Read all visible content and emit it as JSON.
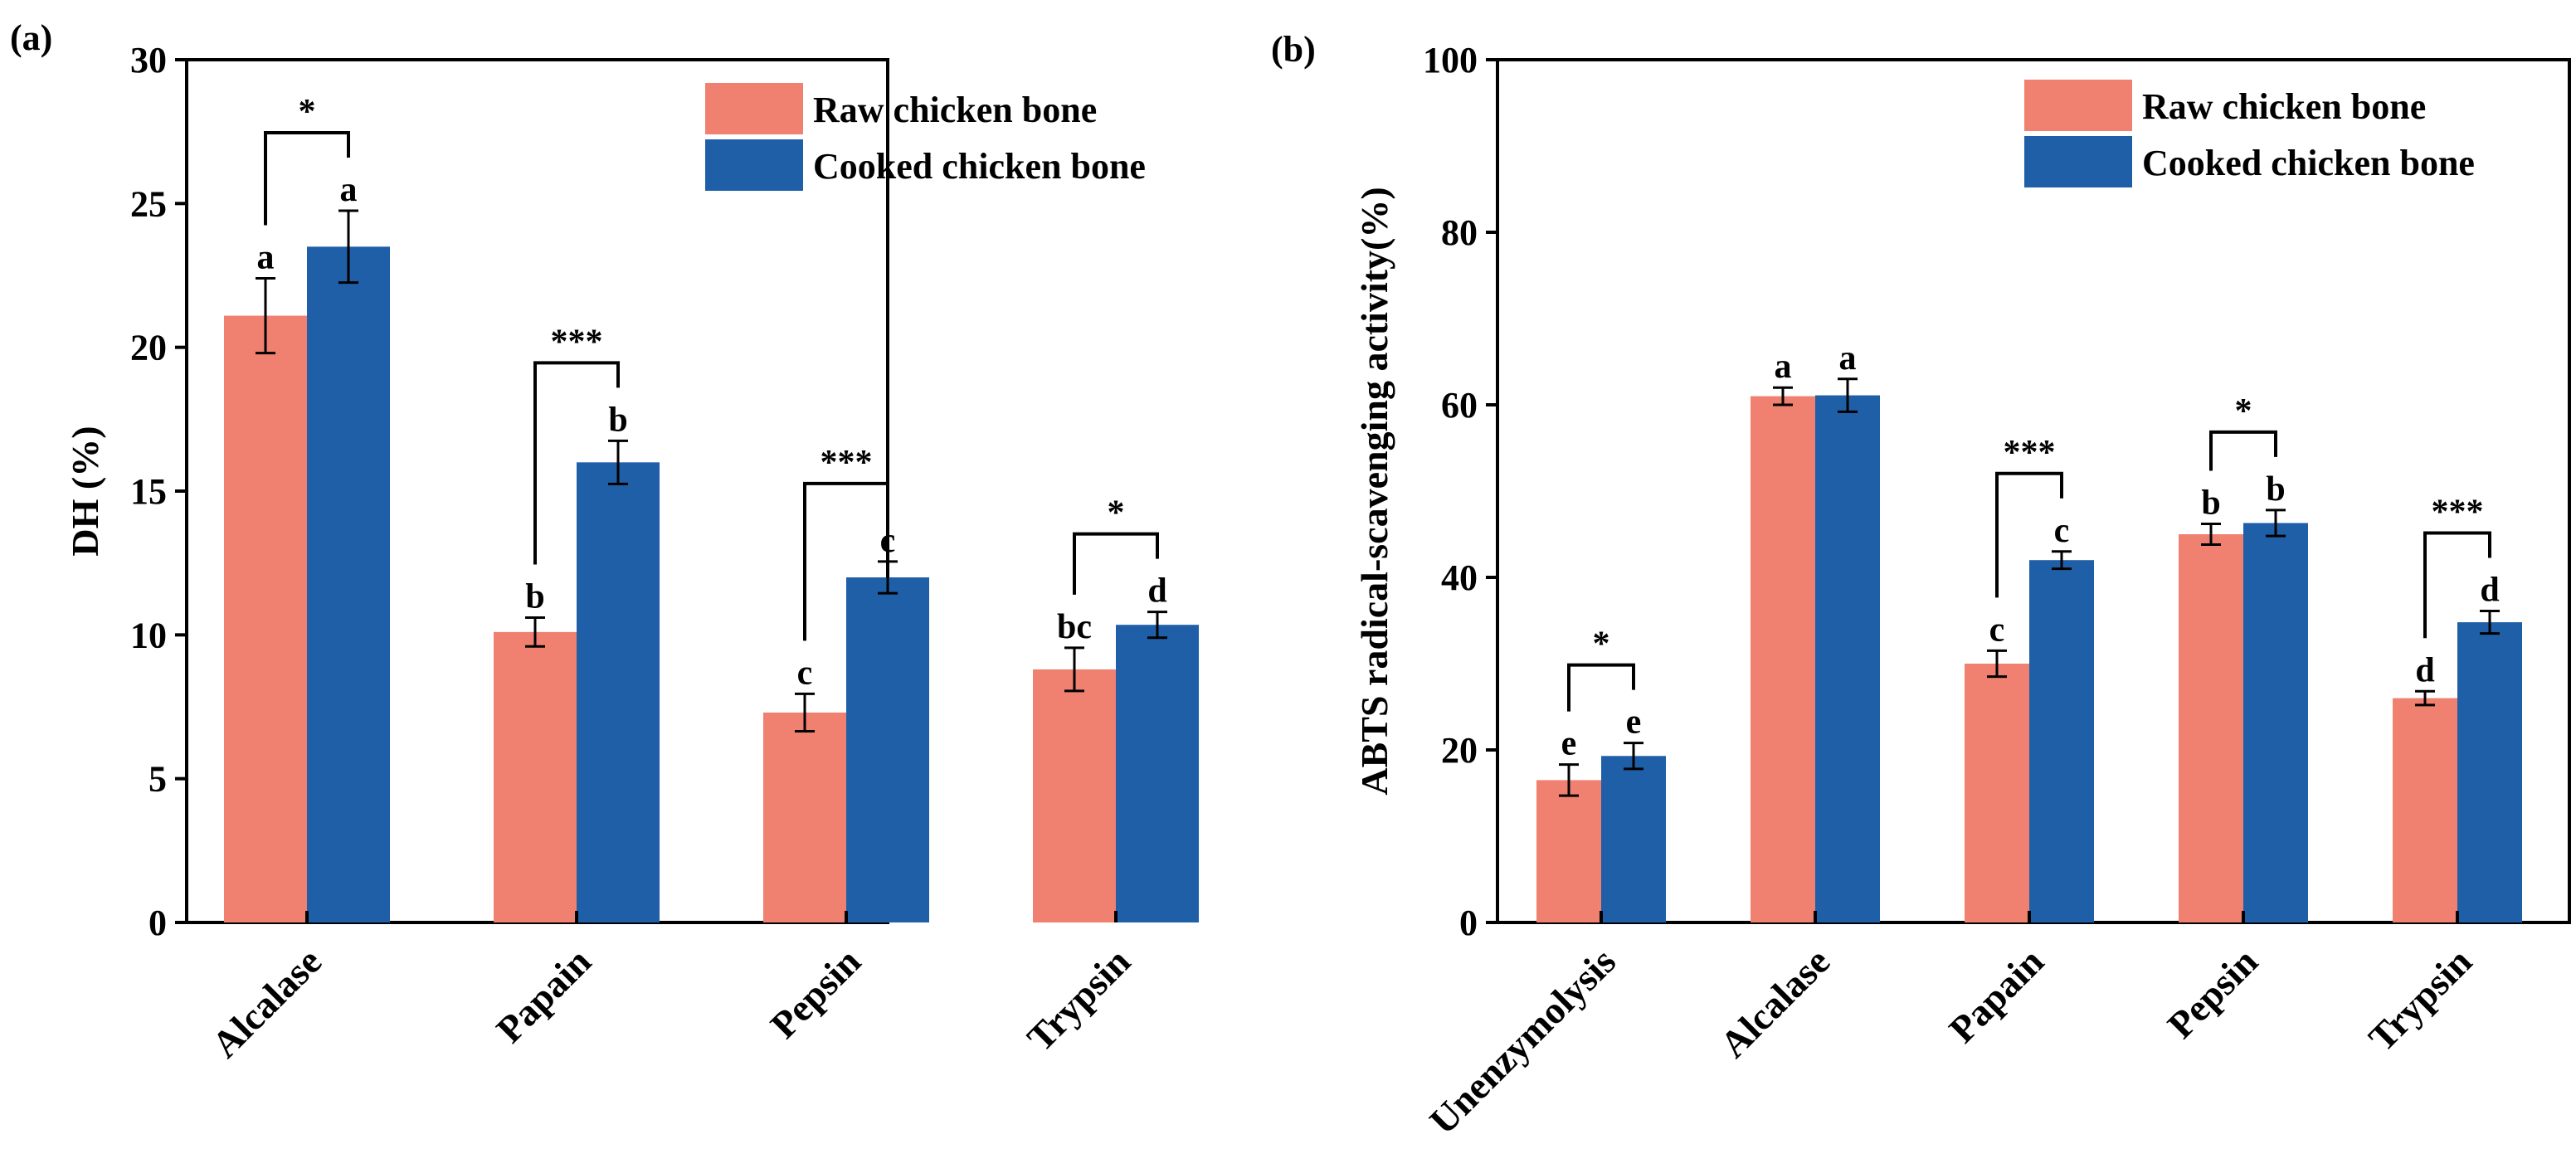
{
  "colors": {
    "raw": "#F08070",
    "cooked": "#1F5FA8",
    "axis": "#000000"
  },
  "chart_data": [
    {
      "type": "bar",
      "panel_label": "(a)",
      "ylabel": "DH (%)",
      "ylim": [
        0,
        30
      ],
      "yticks": [
        "0",
        "5",
        "10",
        "15",
        "20",
        "25",
        "30"
      ],
      "categories": [
        "Alcalase",
        "Papain",
        "Pepsin",
        "Trypsin"
      ],
      "legend": {
        "position": "top-right",
        "entries": [
          "Raw chicken bone",
          "Cooked chicken bone"
        ]
      },
      "series": [
        {
          "name": "Raw chicken bone",
          "values": [
            21.1,
            10.1,
            7.3,
            8.8
          ],
          "errors": [
            1.3,
            0.5,
            0.65,
            0.75
          ],
          "letters": [
            "a",
            "b",
            "c",
            "bc"
          ]
        },
        {
          "name": "Cooked chicken bone",
          "values": [
            23.5,
            16.0,
            12.0,
            10.35
          ],
          "errors": [
            1.25,
            0.75,
            0.55,
            0.45
          ],
          "letters": [
            "a",
            "b",
            "c",
            "d"
          ]
        }
      ],
      "significance": [
        "*",
        "***",
        "***",
        "*"
      ]
    },
    {
      "type": "bar",
      "panel_label": "(b)",
      "ylabel": "ABTS radical-scavenging activity(%)",
      "ylim": [
        0,
        100
      ],
      "yticks": [
        "0",
        "20",
        "40",
        "60",
        "80",
        "100"
      ],
      "categories": [
        "Unenzymolysis",
        "Alcalase",
        "Papain",
        "Pepsin",
        "Trypsin"
      ],
      "legend": {
        "position": "top-right",
        "entries": [
          "Raw chicken bone",
          "Cooked chicken bone"
        ]
      },
      "series": [
        {
          "name": "Raw chicken bone",
          "values": [
            16.5,
            61.0,
            30.0,
            45.0,
            26.0
          ],
          "errors": [
            1.8,
            1.0,
            1.5,
            1.2,
            0.8
          ],
          "letters": [
            "e",
            "a",
            "c",
            "b",
            "d"
          ]
        },
        {
          "name": "Cooked chicken bone",
          "values": [
            19.3,
            61.1,
            42.0,
            46.3,
            34.8
          ],
          "errors": [
            1.5,
            1.9,
            1.0,
            1.5,
            1.3
          ],
          "letters": [
            "e",
            "a",
            "c",
            "b",
            "d"
          ]
        }
      ],
      "significance": [
        "*",
        "",
        "***",
        "*",
        "***"
      ]
    }
  ]
}
